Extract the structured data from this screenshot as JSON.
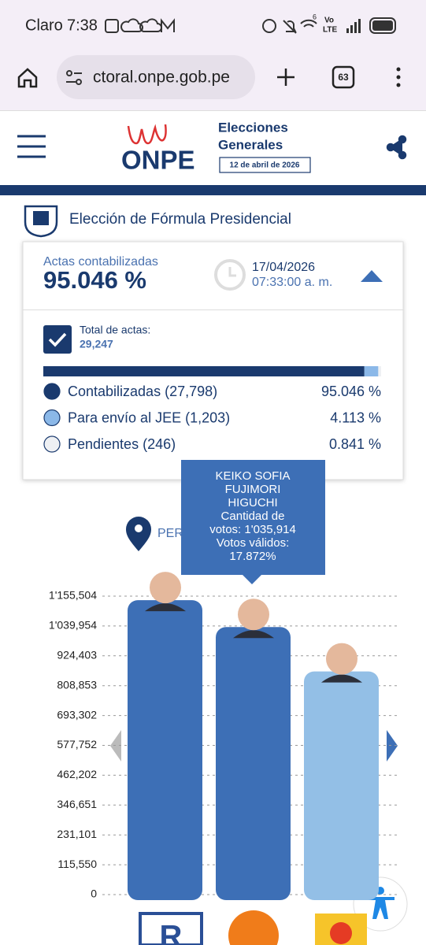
{
  "status": {
    "carrier": "Claro",
    "time": "7:38",
    "net_a": "Vo",
    "net_b": "LTE",
    "net_c": "6"
  },
  "browser": {
    "url": "ctoral.onpe.gob.pe",
    "tabs": "63"
  },
  "header": {
    "logo": "ONPE",
    "title_1": "Elecciones",
    "title_2": "Generales",
    "date": "12 de abril de 2026"
  },
  "section_title": "Elección de Fórmula Presidencial",
  "summary": {
    "label": "Actas contabilizadas",
    "percent": "95.046 %",
    "date": "17/04/2026",
    "time": "07:33:00 a. m.",
    "total_label": "Total de actas:",
    "total": "29,247",
    "items": [
      {
        "label": "Contabilizadas (27,798)",
        "percent": 95.046,
        "percent_label": "95.046 %",
        "color": "#1a3a6e"
      },
      {
        "label": "Para envío al JEE (1,203)",
        "percent": 4.113,
        "percent_label": "4.113 %",
        "color": "#8bb8e8"
      },
      {
        "label": "Pendientes (246)",
        "percent": 0.841,
        "percent_label": "0.841 %",
        "color": "#eef0f3"
      }
    ]
  },
  "region": "PER",
  "tooltip": {
    "lines": [
      "KEIKO SOFIA",
      "FUJIMORI",
      "HIGUCHI",
      "Cantidad de",
      "votos: 1'035,914",
      "Votos válidos:",
      "17.872%"
    ]
  },
  "chart": {
    "type": "bar",
    "categories": [
      null,
      null,
      null
    ],
    "values": [
      1140000,
      1035914,
      864000
    ],
    "colors": [
      "#3d6fb6",
      "#3d6fb6",
      "#93bfe6"
    ],
    "ylim": [
      0,
      1155504
    ],
    "yticks": [
      0,
      {
        "value": 115550,
        "label": "115,550"
      },
      {
        "value": 231101,
        "label": "231,101"
      },
      {
        "value": 346651,
        "label": "346,651"
      },
      {
        "value": 462202,
        "label": "462,202"
      },
      {
        "value": 577752,
        "label": "577,752"
      },
      {
        "value": 693302,
        "label": "693,302"
      },
      {
        "value": 808853,
        "label": "808,853"
      },
      {
        "value": 924403,
        "label": "924,403"
      },
      {
        "value": 1039954,
        "label": "1'039,954"
      },
      {
        "value": 1155504,
        "label": "1'155,504"
      }
    ],
    "grid": true
  }
}
